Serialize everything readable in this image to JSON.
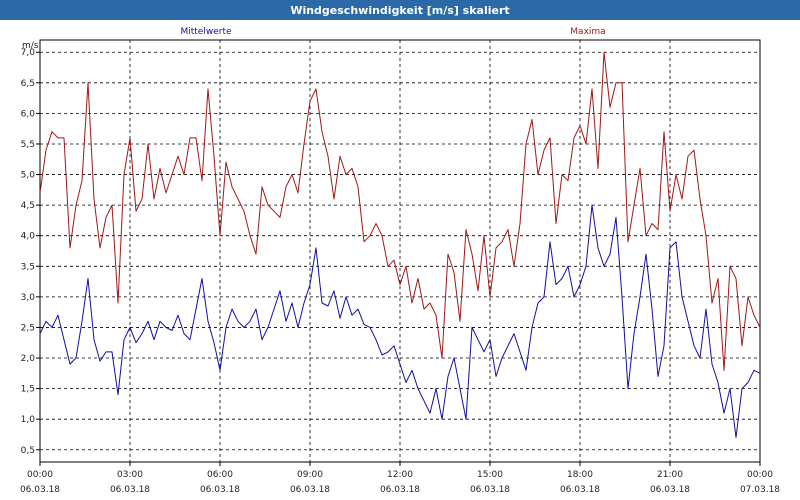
{
  "window": {
    "title": "Windgeschwindigkeit [m/s] skaliert"
  },
  "colors": {
    "mean": "#1010a0",
    "max": "#a01818",
    "titlebar": "#2b6aa6",
    "grid": "#000000"
  },
  "chart_data": {
    "type": "line",
    "title": "Windgeschwindigkeit [m/s] skaliert",
    "ylabel": "m/s",
    "xlabel": "",
    "ylim": [
      0.3,
      7.2
    ],
    "yticks": [
      0.5,
      1.0,
      1.5,
      2.0,
      2.5,
      3.0,
      3.5,
      4.0,
      4.5,
      5.0,
      5.5,
      6.0,
      6.5,
      7.0
    ],
    "ytick_labels": [
      "0,5",
      "1,0",
      "1,5",
      "2,0",
      "2,5",
      "3,0",
      "3,5",
      "4,0",
      "4,5",
      "5,0",
      "5,5",
      "6,0",
      "6,5",
      "7,0"
    ],
    "xlim_hours": [
      0,
      24
    ],
    "xticks": [
      {
        "time": "00:00",
        "date": "06.03.18"
      },
      {
        "time": "03:00",
        "date": "06.03.18"
      },
      {
        "time": "06:00",
        "date": "06.03.18"
      },
      {
        "time": "09:00",
        "date": "06.03.18"
      },
      {
        "time": "12:00",
        "date": "06.03.18"
      },
      {
        "time": "15:00",
        "date": "06.03.18"
      },
      {
        "time": "18:00",
        "date": "06.03.18"
      },
      {
        "time": "21:00",
        "date": "06.03.18"
      },
      {
        "time": "00:00",
        "date": "07.03.18"
      }
    ],
    "grid": true,
    "legend": "top",
    "series": [
      {
        "name": "Mittelwerte",
        "color": "#1010a0",
        "x": [
          0,
          0.2,
          0.4,
          0.6,
          0.8,
          1.0,
          1.2,
          1.4,
          1.6,
          1.8,
          2.0,
          2.2,
          2.4,
          2.6,
          2.8,
          3.0,
          3.2,
          3.4,
          3.6,
          3.8,
          4.0,
          4.2,
          4.4,
          4.6,
          4.8,
          5.0,
          5.2,
          5.4,
          5.6,
          5.8,
          6.0,
          6.2,
          6.4,
          6.6,
          6.8,
          7.0,
          7.2,
          7.4,
          7.6,
          7.8,
          8.0,
          8.2,
          8.4,
          8.6,
          8.8,
          9.0,
          9.2,
          9.4,
          9.6,
          9.8,
          10.0,
          10.2,
          10.4,
          10.6,
          10.8,
          11.0,
          11.2,
          11.4,
          11.6,
          11.8,
          12.0,
          12.2,
          12.4,
          12.6,
          12.8,
          13.0,
          13.2,
          13.4,
          13.6,
          13.8,
          14.0,
          14.2,
          14.4,
          14.6,
          14.8,
          15.0,
          15.2,
          15.4,
          15.6,
          15.8,
          16.0,
          16.2,
          16.4,
          16.6,
          16.8,
          17.0,
          17.2,
          17.4,
          17.6,
          17.8,
          18.0,
          18.2,
          18.4,
          18.6,
          18.8,
          19.0,
          19.2,
          19.4,
          19.6,
          19.8,
          20.0,
          20.2,
          20.4,
          20.6,
          20.8,
          21.0,
          21.2,
          21.4,
          21.6,
          21.8,
          22.0,
          22.2,
          22.4,
          22.6,
          22.8,
          23.0,
          23.2,
          23.4,
          23.6,
          23.8,
          24.0
        ],
        "values": [
          2.4,
          2.6,
          2.5,
          2.7,
          2.3,
          1.9,
          2.0,
          2.6,
          3.3,
          2.3,
          1.95,
          2.1,
          2.1,
          1.4,
          2.3,
          2.5,
          2.25,
          2.4,
          2.6,
          2.3,
          2.6,
          2.5,
          2.45,
          2.7,
          2.4,
          2.3,
          2.8,
          3.3,
          2.6,
          2.25,
          1.8,
          2.5,
          2.8,
          2.6,
          2.5,
          2.6,
          2.8,
          2.3,
          2.5,
          2.8,
          3.1,
          2.6,
          2.9,
          2.5,
          2.9,
          3.2,
          3.8,
          2.9,
          2.85,
          3.1,
          2.65,
          3.0,
          2.7,
          2.8,
          2.55,
          2.5,
          2.3,
          2.05,
          2.1,
          2.2,
          1.9,
          1.6,
          1.8,
          1.5,
          1.3,
          1.1,
          1.5,
          1.0,
          1.7,
          2.0,
          1.5,
          1.0,
          2.5,
          2.3,
          2.1,
          2.3,
          1.7,
          2.0,
          2.2,
          2.4,
          2.1,
          1.8,
          2.5,
          2.9,
          3.0,
          3.9,
          3.2,
          3.3,
          3.5,
          3.0,
          3.2,
          3.5,
          4.5,
          3.8,
          3.5,
          3.7,
          4.3,
          3.0,
          1.5,
          2.4,
          3.0,
          3.7,
          2.8,
          1.7,
          2.2,
          3.8,
          3.9,
          3.0,
          2.6,
          2.2,
          2.0,
          2.8,
          1.9,
          1.6,
          1.1,
          1.5,
          0.7,
          1.5,
          1.6,
          1.8,
          1.75
        ]
      },
      {
        "name": "Maxima",
        "color": "#a01818",
        "x": [
          0,
          0.2,
          0.4,
          0.6,
          0.8,
          1.0,
          1.2,
          1.4,
          1.6,
          1.8,
          2.0,
          2.2,
          2.4,
          2.6,
          2.8,
          3.0,
          3.2,
          3.4,
          3.6,
          3.8,
          4.0,
          4.2,
          4.4,
          4.6,
          4.8,
          5.0,
          5.2,
          5.4,
          5.6,
          5.8,
          6.0,
          6.2,
          6.4,
          6.6,
          6.8,
          7.0,
          7.2,
          7.4,
          7.6,
          7.8,
          8.0,
          8.2,
          8.4,
          8.6,
          8.8,
          9.0,
          9.2,
          9.4,
          9.6,
          9.8,
          10.0,
          10.2,
          10.4,
          10.6,
          10.8,
          11.0,
          11.2,
          11.4,
          11.6,
          11.8,
          12.0,
          12.2,
          12.4,
          12.6,
          12.8,
          13.0,
          13.2,
          13.4,
          13.6,
          13.8,
          14.0,
          14.2,
          14.4,
          14.6,
          14.8,
          15.0,
          15.2,
          15.4,
          15.6,
          15.8,
          16.0,
          16.2,
          16.4,
          16.6,
          16.8,
          17.0,
          17.2,
          17.4,
          17.6,
          17.8,
          18.0,
          18.2,
          18.4,
          18.6,
          18.8,
          19.0,
          19.2,
          19.4,
          19.6,
          19.8,
          20.0,
          20.2,
          20.4,
          20.6,
          20.8,
          21.0,
          21.2,
          21.4,
          21.6,
          21.8,
          22.0,
          22.2,
          22.4,
          22.6,
          22.8,
          23.0,
          23.2,
          23.4,
          23.6,
          23.8,
          24.0
        ],
        "values": [
          4.7,
          5.4,
          5.7,
          5.6,
          5.6,
          3.8,
          4.5,
          4.9,
          6.5,
          4.6,
          3.8,
          4.3,
          4.5,
          2.9,
          5.0,
          5.6,
          4.4,
          4.6,
          5.5,
          4.6,
          5.1,
          4.7,
          5.0,
          5.3,
          5.0,
          5.6,
          5.6,
          4.9,
          6.4,
          5.3,
          4.0,
          5.2,
          4.8,
          4.6,
          4.4,
          4.0,
          3.7,
          4.8,
          4.5,
          4.4,
          4.3,
          4.8,
          5.0,
          4.7,
          5.5,
          6.2,
          6.4,
          5.7,
          5.3,
          4.6,
          5.3,
          5.0,
          5.1,
          4.8,
          3.9,
          4.0,
          4.2,
          4.0,
          3.5,
          3.6,
          3.2,
          3.5,
          2.9,
          3.3,
          2.8,
          2.9,
          2.7,
          2.0,
          3.7,
          3.4,
          2.6,
          4.1,
          3.7,
          3.1,
          4.0,
          3.0,
          3.8,
          3.9,
          4.1,
          3.5,
          4.2,
          5.5,
          5.9,
          5.0,
          5.4,
          5.6,
          4.2,
          5.0,
          4.9,
          5.6,
          5.8,
          5.5,
          6.4,
          5.1,
          7.0,
          6.1,
          6.5,
          6.5,
          3.9,
          4.5,
          5.1,
          4.0,
          4.2,
          4.1,
          5.7,
          4.4,
          5.0,
          4.6,
          5.3,
          5.4,
          4.6,
          4.0,
          2.9,
          3.3,
          1.8,
          3.5,
          3.3,
          2.2,
          3.0,
          2.7,
          2.5
        ]
      }
    ]
  }
}
